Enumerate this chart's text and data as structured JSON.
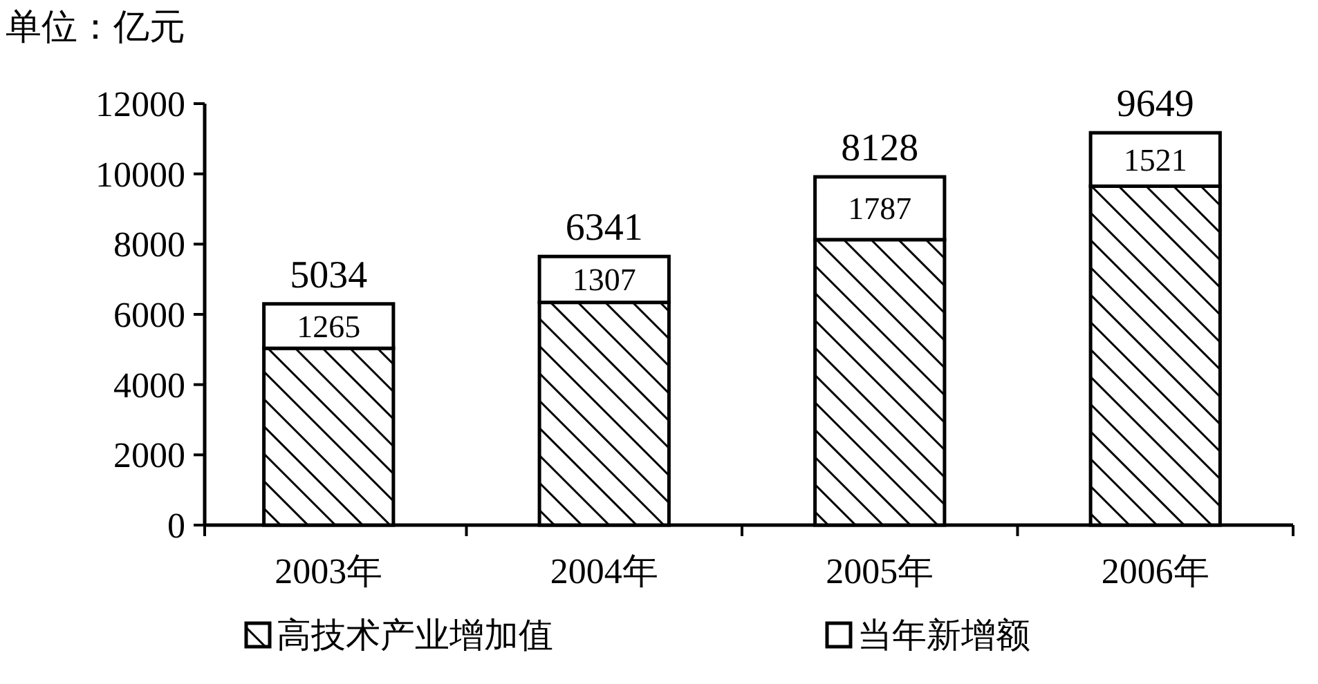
{
  "chart_data": {
    "type": "bar",
    "stacked": true,
    "ylabel": "单位：亿元",
    "categories": [
      "2003年",
      "2004年",
      "2005年",
      "2006年"
    ],
    "series": [
      {
        "name": "高技术产业增加值",
        "color": "#000000",
        "values": [
          5034,
          6341,
          8128,
          9649
        ]
      },
      {
        "name": "当年新增额",
        "color": "#ffffff",
        "values": [
          1265,
          1307,
          1787,
          1521
        ]
      }
    ],
    "ylim": [
      0,
      12000
    ],
    "yticks": [
      0,
      2000,
      4000,
      6000,
      8000,
      10000,
      12000
    ],
    "grid": false,
    "legend": "bottom",
    "data_labels": true
  }
}
